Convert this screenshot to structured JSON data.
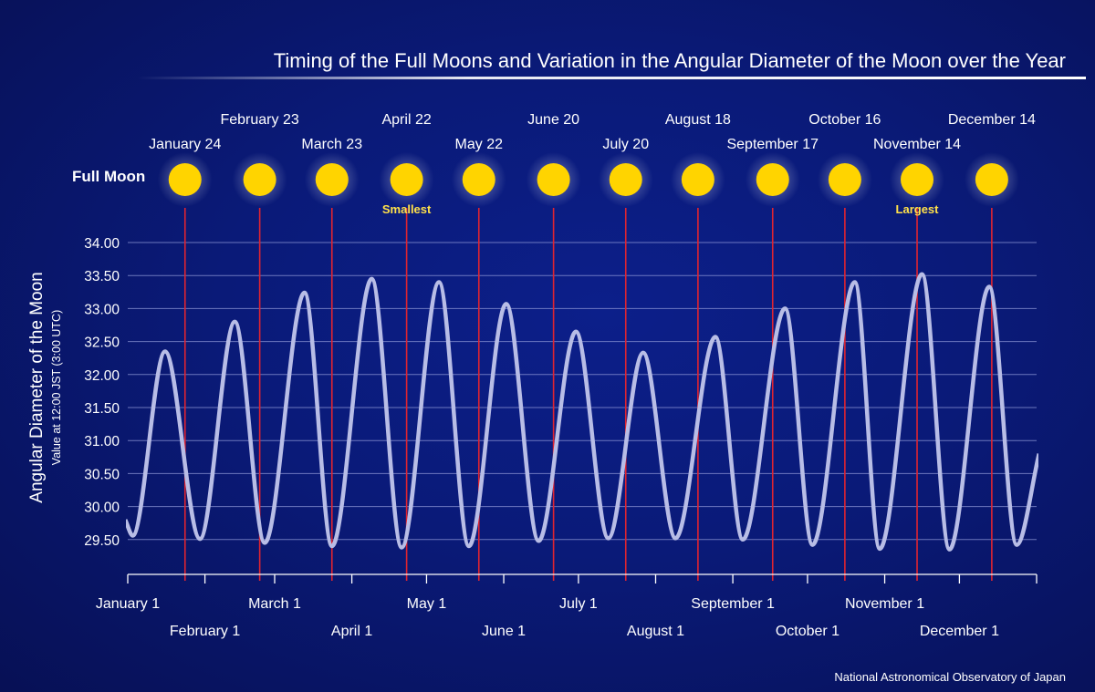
{
  "title": "Timing of the Full Moons and Variation in the Angular Diameter of the Moon over the Year",
  "credit": "National Astronomical Observatory of Japan",
  "full_moon_label": "Full Moon",
  "colors": {
    "background": "#0a1a78",
    "curve": "#b8bde6",
    "full_moon_line": "#e02430",
    "moon": "#ffd400",
    "highlight_text": "#ffe14a",
    "grid": "#8d97d6"
  },
  "chart_data": {
    "type": "line",
    "title": "Timing of the Full Moons and Variation in the Angular Diameter of the Moon over the Year",
    "ylabel": "Angular Diameter of the Moon",
    "ylabel_sub": "Value at 12:00 JST (3:00 UTC)",
    "xlabel": "",
    "ylim": [
      29.0,
      34.0
    ],
    "y_ticks": [
      "29.50",
      "30.00",
      "30.50",
      "31.00",
      "31.50",
      "32.00",
      "32.50",
      "33.00",
      "33.50",
      "34.00"
    ],
    "grid": true,
    "x_ticks": [
      {
        "label": "January 1",
        "day": 0
      },
      {
        "label": "February 1",
        "day": 31
      },
      {
        "label": "March 1",
        "day": 59
      },
      {
        "label": "April 1",
        "day": 90
      },
      {
        "label": "May 1",
        "day": 120
      },
      {
        "label": "June 1",
        "day": 151
      },
      {
        "label": "July 1",
        "day": 181
      },
      {
        "label": "August 1",
        "day": 212
      },
      {
        "label": "September 1",
        "day": 243
      },
      {
        "label": "October 1",
        "day": 273
      },
      {
        "label": "November 1",
        "day": 304
      },
      {
        "label": "December 1",
        "day": 334
      }
    ],
    "full_moons": [
      {
        "label": "January 24",
        "day": 23,
        "note": ""
      },
      {
        "label": "February 23",
        "day": 53,
        "note": ""
      },
      {
        "label": "March 23",
        "day": 82,
        "note": ""
      },
      {
        "label": "April 22",
        "day": 112,
        "note": "Smallest"
      },
      {
        "label": "May 22",
        "day": 141,
        "note": ""
      },
      {
        "label": "June 20",
        "day": 171,
        "note": ""
      },
      {
        "label": "July 20",
        "day": 200,
        "note": ""
      },
      {
        "label": "August 18",
        "day": 229,
        "note": ""
      },
      {
        "label": "September 17",
        "day": 259,
        "note": ""
      },
      {
        "label": "October 16",
        "day": 288,
        "note": ""
      },
      {
        "label": "November 14",
        "day": 317,
        "note": "Largest"
      },
      {
        "label": "December 14",
        "day": 347,
        "note": ""
      }
    ],
    "series": [
      {
        "x": [
          -1,
          2,
          15,
          29,
          43,
          55,
          71,
          82,
          98,
          110,
          125,
          137,
          152,
          165,
          180,
          193,
          207,
          220,
          236,
          247,
          264,
          275,
          292,
          302,
          319,
          330,
          346,
          357,
          366
        ],
        "y": [
          29.8,
          29.56,
          32.35,
          29.51,
          32.8,
          29.45,
          33.24,
          29.4,
          33.45,
          29.38,
          33.4,
          29.4,
          33.07,
          29.48,
          32.65,
          29.52,
          32.33,
          29.52,
          32.57,
          29.5,
          33.0,
          29.42,
          33.4,
          29.36,
          33.52,
          29.35,
          33.33,
          29.42,
          30.8
        ]
      }
    ]
  }
}
